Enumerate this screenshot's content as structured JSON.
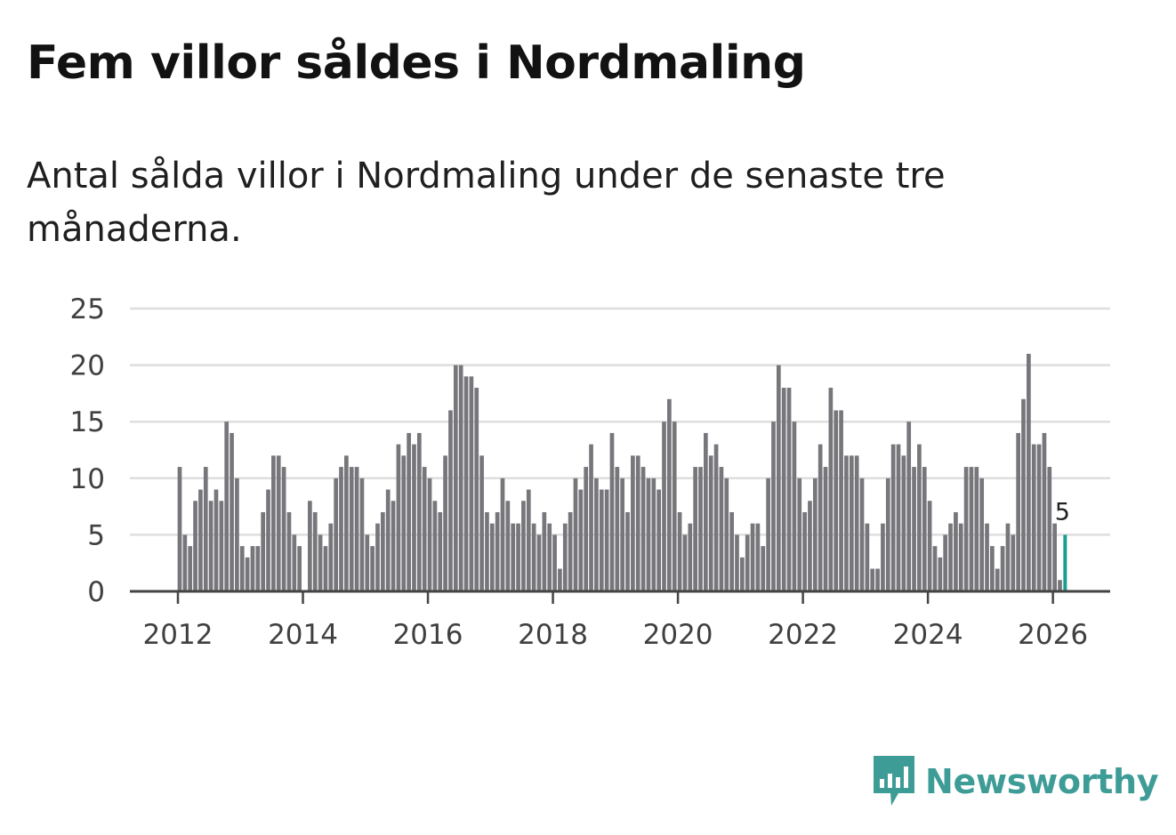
{
  "title": "Fem villor såldes i Nordmaling",
  "subtitle": "Antal sålda villor i Nordmaling under de senaste tre månaderna.",
  "brand": {
    "name": "Newsworthy",
    "color": "#3e9c97"
  },
  "colors": {
    "bar": "#77767b",
    "highlight": "#1a9e8f",
    "grid": "#dedede",
    "axis": "#444444"
  },
  "chart_data": {
    "type": "bar",
    "title": "Fem villor såldes i Nordmaling",
    "subtitle": "Antal sålda villor i Nordmaling under de senaste tre månaderna.",
    "xlabel": "",
    "ylabel": "",
    "ylim": [
      0,
      25
    ],
    "yticks": [
      0,
      5,
      10,
      15,
      20,
      25
    ],
    "xticks": [
      "2012",
      "2014",
      "2016",
      "2018",
      "2020",
      "2022",
      "2024",
      "2026"
    ],
    "grid": true,
    "start": "2012-01",
    "period": "month",
    "values": [
      11,
      5,
      4,
      8,
      9,
      11,
      8,
      9,
      8,
      15,
      14,
      10,
      4,
      3,
      4,
      4,
      7,
      9,
      12,
      12,
      11,
      7,
      5,
      4,
      0,
      8,
      7,
      5,
      4,
      6,
      10,
      11,
      12,
      11,
      11,
      10,
      5,
      4,
      6,
      7,
      9,
      8,
      13,
      12,
      14,
      13,
      14,
      11,
      10,
      8,
      7,
      12,
      16,
      20,
      20,
      19,
      19,
      18,
      12,
      7,
      6,
      7,
      10,
      8,
      6,
      6,
      8,
      9,
      6,
      5,
      7,
      6,
      5,
      2,
      6,
      7,
      10,
      9,
      11,
      13,
      10,
      9,
      9,
      14,
      11,
      10,
      7,
      12,
      12,
      11,
      10,
      10,
      9,
      15,
      17,
      15,
      7,
      5,
      6,
      11,
      11,
      14,
      12,
      13,
      11,
      10,
      7,
      5,
      3,
      5,
      6,
      6,
      4,
      10,
      15,
      20,
      18,
      18,
      15,
      10,
      7,
      8,
      10,
      13,
      11,
      18,
      16,
      16,
      12,
      12,
      12,
      10,
      6,
      2,
      2,
      6,
      10,
      13,
      13,
      12,
      15,
      11,
      13,
      11,
      8,
      4,
      3,
      5,
      6,
      7,
      6,
      11,
      11,
      11,
      10,
      6,
      4,
      2,
      4,
      6,
      5,
      14,
      17,
      21,
      13,
      13,
      14,
      11,
      6,
      1,
      5
    ],
    "highlight": {
      "label": "5",
      "value": 5
    }
  }
}
